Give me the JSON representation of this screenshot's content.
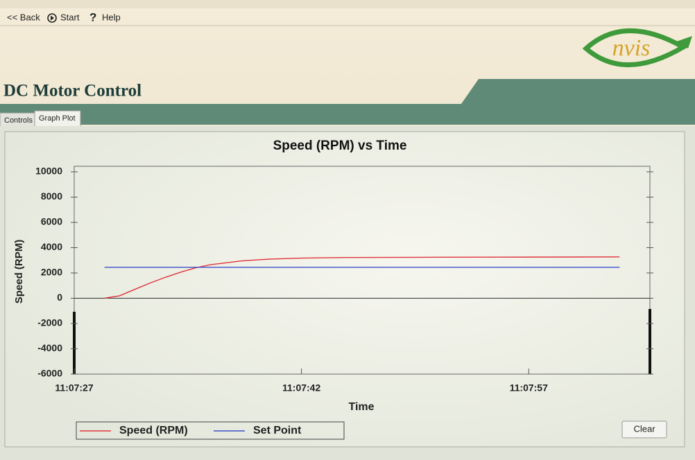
{
  "toolbar": {
    "back": "<< Back",
    "start": "Start",
    "help": "Help"
  },
  "logo": "nvis",
  "header": {
    "title": "DC Motor Control"
  },
  "tabs": [
    "Controls",
    "Graph Plot"
  ],
  "button": "Clear",
  "chart_data": {
    "type": "line",
    "title": "Speed (RPM) vs Time",
    "x_label": "Time",
    "y_label": "Speed (RPM)",
    "x": [
      "11:07:29",
      "11:07:30",
      "11:07:31",
      "11:07:32",
      "11:07:33",
      "11:07:34",
      "11:07:35",
      "11:07:36",
      "11:07:37",
      "11:07:38",
      "11:07:39",
      "11:07:40",
      "11:07:42",
      "11:07:45",
      "11:07:50",
      "11:07:55",
      "11:08:00",
      "11:08:03"
    ],
    "series": [
      {
        "name": "Speed (RPM)",
        "color": "#e0323a",
        "values": [
          0,
          200,
          700,
          1200,
          1650,
          2050,
          2400,
          2650,
          2800,
          2950,
          3030,
          3100,
          3170,
          3220,
          3240,
          3250,
          3260,
          3270
        ]
      },
      {
        "name": "Set Point",
        "color": "#3a4fc8",
        "values": [
          2450,
          2450,
          2450,
          2450,
          2450,
          2450,
          2450,
          2450,
          2450,
          2450,
          2450,
          2450,
          2450,
          2450,
          2450,
          2450,
          2450,
          2450
        ]
      }
    ],
    "xlim": [
      "11:07:27",
      "11:08:05"
    ],
    "xticks": [
      "11:07:27",
      "11:07:42",
      "11:07:57"
    ],
    "ylim": [
      -6000,
      10000
    ],
    "yticks": [
      -6000,
      -4000,
      -2000,
      0,
      2000,
      4000,
      6000,
      8000,
      10000
    ],
    "zero_line": true,
    "legend": "bottom"
  }
}
